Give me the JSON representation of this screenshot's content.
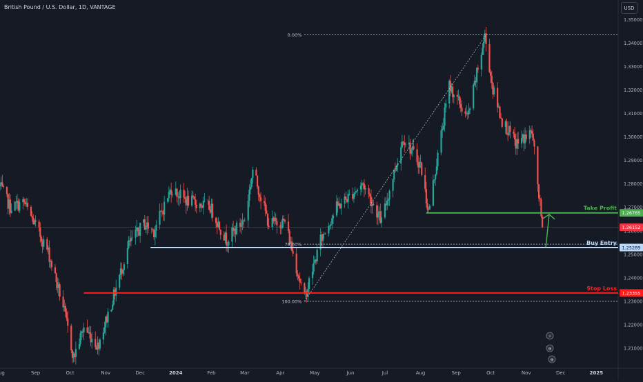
{
  "header": {
    "title": "British Pound / U.S. Dollar, 1D, VANTAGE",
    "currency_button": "USD"
  },
  "colors": {
    "background": "#161a25",
    "up_candle": "#26a69a",
    "down_candle": "#ef5350",
    "take_profit": "#4caf50",
    "buy_entry": "#bbd9fb",
    "stop_loss": "#ff1e1e",
    "current_price": "#f23645",
    "fib": "#c9ccd3",
    "axis_text": "#b2b5be"
  },
  "chart_data": {
    "type": "candlestick",
    "title": "British Pound / U.S. Dollar, 1D, VANTAGE",
    "ylim": [
      1.2015,
      1.3583
    ],
    "y_ticks": [
      "1.35000",
      "1.34000",
      "1.33000",
      "1.32000",
      "1.31000",
      "1.30000",
      "1.29000",
      "1.28000",
      "1.27000",
      "1.26000",
      "1.25000",
      "1.24000",
      "1.23000",
      "1.22000",
      "1.21000"
    ],
    "x_ticks": [
      "Aug",
      "Sep",
      "Oct",
      "Nov",
      "Dec",
      "2024",
      "Feb",
      "Mar",
      "Apr",
      "May",
      "Jun",
      "Jul",
      "Aug",
      "Sep",
      "Oct",
      "Nov",
      "Dec",
      "2025"
    ],
    "x_range": [
      "2023-08-01",
      "2025-01-20"
    ],
    "anchors": [
      [
        "2023-08-01",
        1.279
      ],
      [
        "2023-08-10",
        1.27
      ],
      [
        "2023-08-22",
        1.272
      ],
      [
        "2023-09-01",
        1.262
      ],
      [
        "2023-09-12",
        1.251
      ],
      [
        "2023-09-25",
        1.228
      ],
      [
        "2023-10-04",
        1.206
      ],
      [
        "2023-10-13",
        1.219
      ],
      [
        "2023-10-25",
        1.211
      ],
      [
        "2023-11-06",
        1.229
      ],
      [
        "2023-11-21",
        1.254
      ],
      [
        "2023-12-04",
        1.263
      ],
      [
        "2023-12-13",
        1.26
      ],
      [
        "2023-12-28",
        1.278
      ],
      [
        "2024-01-10",
        1.273
      ],
      [
        "2024-01-31",
        1.27
      ],
      [
        "2024-02-14",
        1.256
      ],
      [
        "2024-03-01",
        1.265
      ],
      [
        "2024-03-08",
        1.286
      ],
      [
        "2024-03-22",
        1.263
      ],
      [
        "2024-04-05",
        1.264
      ],
      [
        "2024-04-22",
        1.231
      ],
      [
        "2024-05-06",
        1.256
      ],
      [
        "2024-05-20",
        1.27
      ],
      [
        "2024-06-12",
        1.28
      ],
      [
        "2024-06-28",
        1.264
      ],
      [
        "2024-07-17",
        1.3
      ],
      [
        "2024-08-01",
        1.288
      ],
      [
        "2024-08-08",
        1.268
      ],
      [
        "2024-08-26",
        1.322
      ],
      [
        "2024-09-11",
        1.308
      ],
      [
        "2024-09-26",
        1.343
      ],
      [
        "2024-10-03",
        1.32
      ],
      [
        "2024-10-11",
        1.307
      ],
      [
        "2024-10-23",
        1.297
      ],
      [
        "2024-11-06",
        1.302
      ],
      [
        "2024-11-11",
        1.28
      ],
      [
        "2024-11-15",
        1.2615
      ]
    ],
    "current_price": {
      "value": 1.26152,
      "label": "1.26152"
    },
    "levels": [
      {
        "name": "Take Profit",
        "value": 1.26765,
        "label": "1.26765",
        "text": "Take Profit",
        "start": "2024-08-06",
        "color": "#4caf50"
      },
      {
        "name": "Buy Entry",
        "value": 1.25289,
        "label": "1.25289",
        "text": "Buy Entry",
        "start": "2023-12-10",
        "color": "#bbd9fb"
      },
      {
        "name": "Stop Loss",
        "value": 1.23355,
        "label": "1.23355",
        "text": "Stop Loss",
        "start": "2023-10-13",
        "color": "#ff1e1e"
      }
    ],
    "fibonacci": {
      "from": {
        "date": "2024-04-22",
        "value": 1.23
      },
      "to": {
        "date": "2024-09-27",
        "value": 1.3435
      },
      "levels": [
        {
          "label": "0.00%",
          "value": 1.3435
        },
        {
          "label": "78.60%",
          "value": 1.2543
        },
        {
          "label": "100.00%",
          "value": 1.23
        }
      ]
    },
    "arrow": {
      "from_value": 1.253,
      "to_value": 1.267,
      "date": "2024-11-18"
    }
  }
}
